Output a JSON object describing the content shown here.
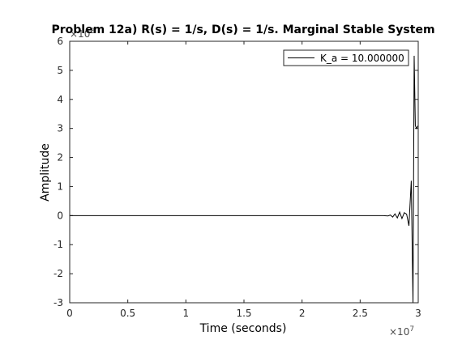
{
  "chart_data": {
    "type": "line",
    "title": "Problem 12a) R(s) = 1/s, D(s) = 1/s. Marginal Stable System",
    "xlabel": "Time (seconds)",
    "ylabel": "Amplitude",
    "x_exponent_base": "×10",
    "x_exponent": "7",
    "y_exponent_base": "×10",
    "y_exponent": "8",
    "xlim": [
      0,
      3
    ],
    "ylim": [
      -3,
      6
    ],
    "x_ticks": [
      0,
      0.5,
      1,
      1.5,
      2,
      2.5,
      3
    ],
    "x_tick_labels": [
      "0",
      "0.5",
      "1",
      "1.5",
      "2",
      "2.5",
      "3"
    ],
    "y_ticks": [
      -3,
      -2,
      -1,
      0,
      1,
      2,
      3,
      4,
      5,
      6
    ],
    "y_tick_labels": [
      "-3",
      "-2",
      "-1",
      "0",
      "1",
      "2",
      "3",
      "4",
      "5",
      "6"
    ],
    "grid": false,
    "legend_position": "top-right",
    "series": [
      {
        "name": "K_a = 10.000000",
        "color": "#000000",
        "x": [
          0,
          0.5,
          1.0,
          1.5,
          2.0,
          2.5,
          2.7,
          2.74,
          2.76,
          2.78,
          2.8,
          2.82,
          2.84,
          2.86,
          2.88,
          2.9,
          2.92,
          2.94,
          2.955,
          2.965,
          2.975,
          2.985,
          2.992,
          3.0
        ],
        "values": [
          0,
          0,
          0,
          0,
          0,
          0,
          0,
          -0.01,
          0.02,
          -0.05,
          0.06,
          -0.08,
          0.12,
          -0.1,
          0.1,
          0.05,
          -0.35,
          1.2,
          -3.0,
          5.5,
          3.1,
          3.0,
          3.05,
          3.1
        ]
      }
    ]
  }
}
